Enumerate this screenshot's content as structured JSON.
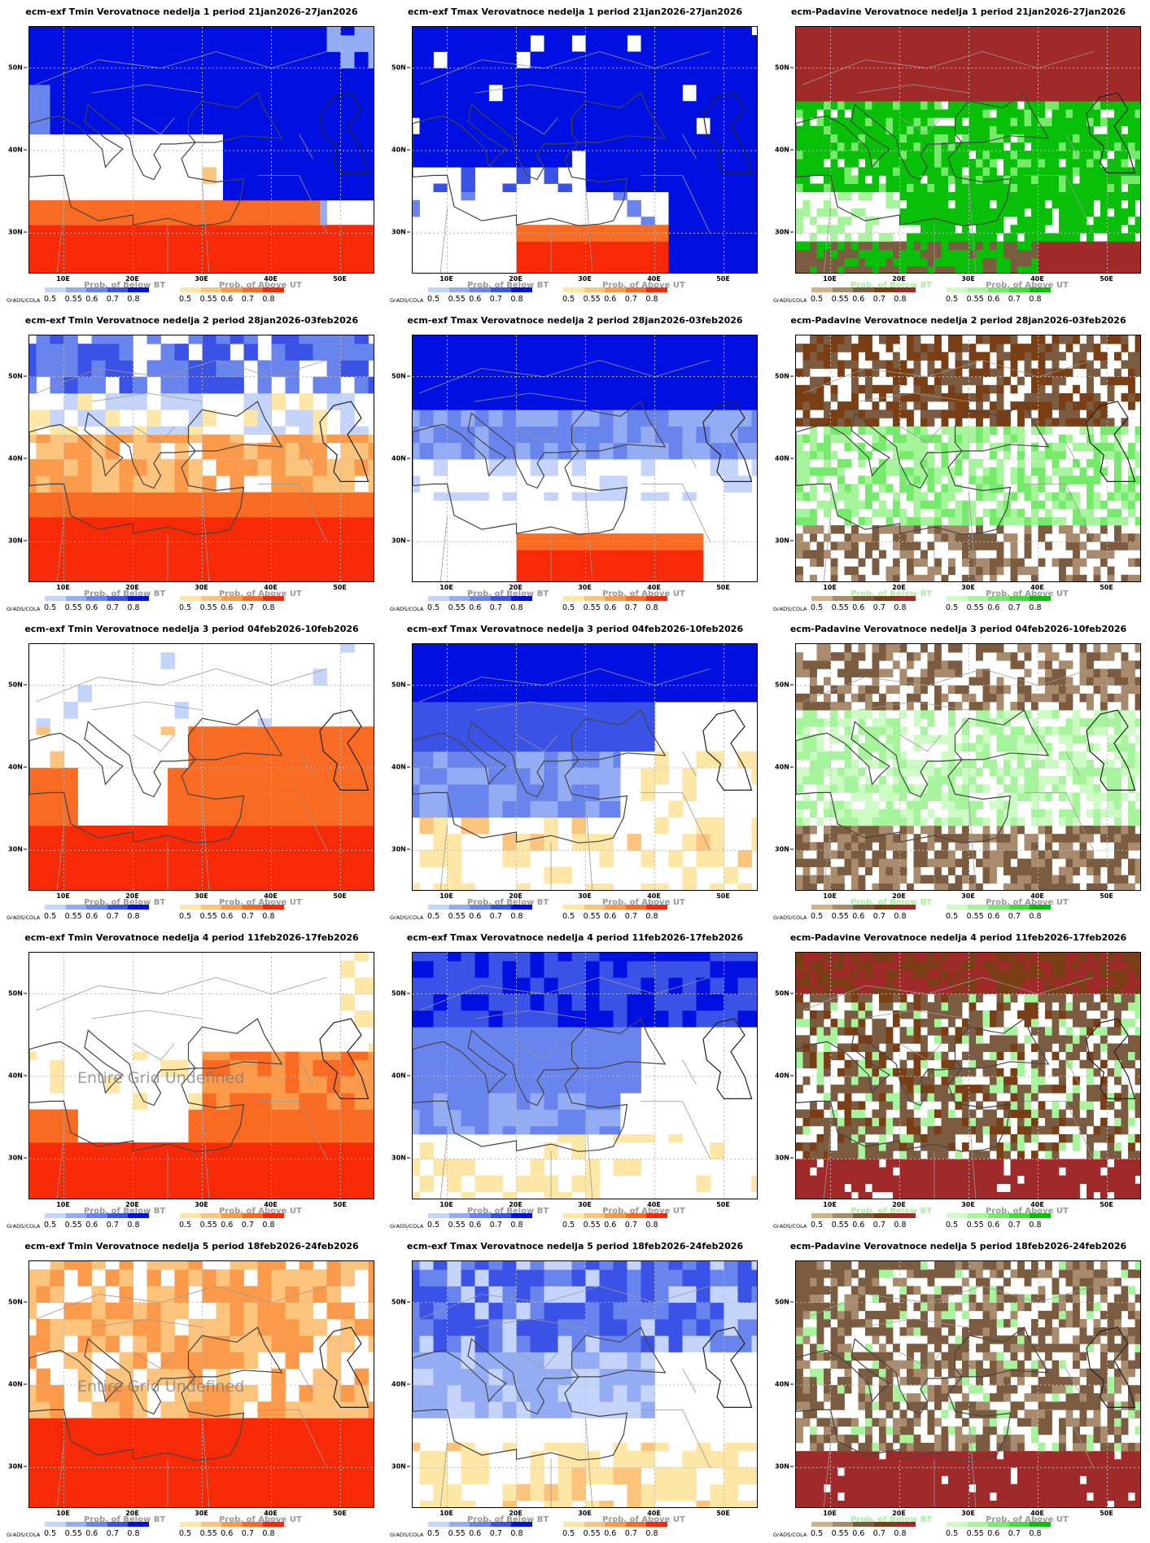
{
  "panels": [
    {
      "title": "ecm-exf Tmin Verovatnoce nedelja 1 period 21jan2026-27jan2026",
      "type": "temp"
    },
    {
      "title": "ecm-exf Tmax Verovatnoce nedelja 1 period 21jan2026-27jan2026",
      "type": "temp"
    },
    {
      "title": "ecm-Padavine Verovatnoce nedelja 1 period 21jan2026-27jan2026",
      "type": "precip"
    },
    {
      "title": "ecm-exf Tmin Verovatnoce nedelja 2 period 28jan2026-03feb2026",
      "type": "temp"
    },
    {
      "title": "ecm-exf Tmax Verovatnoce nedelja 2 period 28jan2026-03feb2026",
      "type": "temp"
    },
    {
      "title": "ecm-Padavine Verovatnoce nedelja 2 period 28jan2026-03feb2026",
      "type": "precip"
    },
    {
      "title": "ecm-exf Tmin Verovatnoce nedelja 3 period 04feb2026-10feb2026",
      "type": "temp"
    },
    {
      "title": "ecm-exf Tmax Verovatnoce nedelja 3 period 04feb2026-10feb2026",
      "type": "temp"
    },
    {
      "title": "ecm-Padavine Verovatnoce nedelja 3 period 04feb2026-10feb2026",
      "type": "precip"
    },
    {
      "title": "ecm-exf Tmin Verovatnoce nedelja 4 period 11feb2026-17feb2026",
      "type": "temp",
      "undefined_note": "Entire Grid Undefined"
    },
    {
      "title": "ecm-exf Tmax Verovatnoce nedelja 4 period 11feb2026-17feb2026",
      "type": "temp"
    },
    {
      "title": "ecm-Padavine Verovatnoce nedelja 4 period 11feb2026-17feb2026",
      "type": "precip"
    },
    {
      "title": "ecm-exf Tmin Verovatnoce nedelja 5 period 18feb2026-24feb2026",
      "type": "temp",
      "undefined_note": "Entire Grid Undefined"
    },
    {
      "title": "ecm-exf Tmax Verovatnoce nedelja 5 period 18feb2026-24feb2026",
      "type": "temp"
    },
    {
      "title": "ecm-Padavine Verovatnoce nedelja 5 period 18feb2026-24feb2026",
      "type": "precip"
    }
  ],
  "lon_labels": [
    "10E",
    "20E",
    "30E",
    "40E",
    "50E"
  ],
  "lat_labels": [
    "50N",
    "40N",
    "30N"
  ],
  "legend": {
    "below_title": "Prob. of Below BT",
    "above_title": "Prob. of Above UT",
    "ticks": [
      "0.5",
      "0.55",
      "0.6",
      "0.7",
      "0.8"
    ],
    "credit": "GrADS/COLA"
  },
  "colors": {
    "temp_below": [
      "#c4d4fa",
      "#94acf3",
      "#6a84ee",
      "#3a52e6",
      "#0010e0"
    ],
    "temp_above": [
      "#fde6a6",
      "#fcc37c",
      "#fb9a4a",
      "#f96a22",
      "#f72a08"
    ],
    "precip_below": [
      "#d2b08a",
      "#a88a6c",
      "#7c5c40",
      "#7a3e14",
      "#a02a2a"
    ],
    "precip_above": [
      "#ccfcc4",
      "#a6f49c",
      "#76ea6a",
      "#44dc3a",
      "#08c008"
    ],
    "temp_below_title": "#999999",
    "temp_above_title": "#999999",
    "precip_below_title": "#a8f09c",
    "precip_above_title": "#999999"
  }
}
